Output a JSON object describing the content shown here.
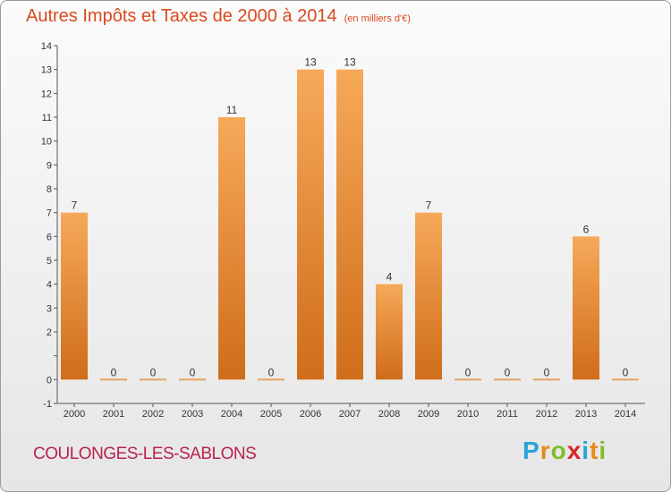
{
  "header": {
    "title": "Autres Impôts et Taxes de 2000 à 2014",
    "subtitle": "(en milliers d'€)"
  },
  "commune": "COULONGES-LES-SABLONS",
  "brand": {
    "letters": [
      "P",
      "r",
      "o",
      "x",
      "i",
      "t",
      "i"
    ],
    "colors": [
      "#2aa3d6",
      "#e38a1c",
      "#7fbf2a",
      "#d6262c",
      "#2aa3d6",
      "#e38a1c",
      "#7fbf2a"
    ]
  },
  "colors": {
    "bar_top": "#f6a95a",
    "bar_bottom": "#cf6d1a",
    "zero_bar": "#e5a463",
    "axis": "#555555",
    "title": "#d94a1e",
    "commune": "#b8234d"
  },
  "chart_data": {
    "type": "bar",
    "title": "Autres Impôts et Taxes de 2000 à 2014",
    "subtitle": "(en milliers d'€)",
    "categories": [
      "2000",
      "2001",
      "2002",
      "2003",
      "2004",
      "2005",
      "2006",
      "2007",
      "2008",
      "2009",
      "2010",
      "2011",
      "2012",
      "2013",
      "2014"
    ],
    "values": [
      7,
      0,
      0,
      0,
      11,
      0,
      13,
      13,
      4,
      7,
      0,
      0,
      0,
      6,
      0
    ],
    "ylim": [
      -1,
      14
    ],
    "yticks": [
      -1,
      0,
      1,
      2,
      3,
      4,
      5,
      6,
      7,
      8,
      9,
      10,
      11,
      12,
      13,
      14
    ],
    "ytick_labels": [
      "-1",
      "0",
      "",
      "2",
      "3",
      "4",
      "5",
      "6",
      "7",
      "8",
      "9",
      "10",
      "11",
      "12",
      "13",
      "14"
    ],
    "xlabel": "",
    "ylabel": "",
    "grid": false,
    "legend": "none"
  }
}
